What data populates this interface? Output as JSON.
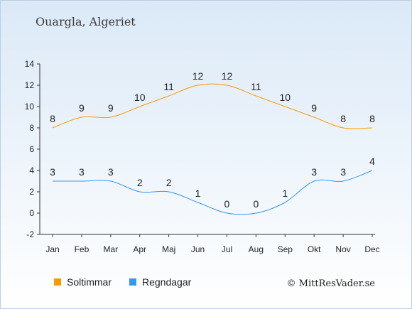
{
  "header": {
    "title": "Ouargla, Algeriet"
  },
  "footer": {
    "copyright": "© MittResVader.se"
  },
  "chart_data": {
    "type": "line",
    "categories": [
      "Jan",
      "Feb",
      "Mar",
      "Apr",
      "Maj",
      "Jun",
      "Jul",
      "Aug",
      "Sep",
      "Okt",
      "Nov",
      "Dec"
    ],
    "ylim": [
      -2,
      14
    ],
    "yticks": [
      -2,
      0,
      2,
      4,
      6,
      8,
      10,
      12,
      14
    ],
    "grid": false,
    "legend_position": "bottom-left",
    "series": [
      {
        "name": "Soltimmar",
        "color": "#ff9900",
        "values": [
          8,
          9,
          9,
          10,
          11,
          12,
          12,
          11,
          10,
          9,
          8,
          8
        ]
      },
      {
        "name": "Regndagar",
        "color": "#3399ee",
        "values": [
          3,
          3,
          3,
          2,
          2,
          1,
          0,
          0,
          1,
          3,
          3,
          4
        ]
      }
    ]
  }
}
